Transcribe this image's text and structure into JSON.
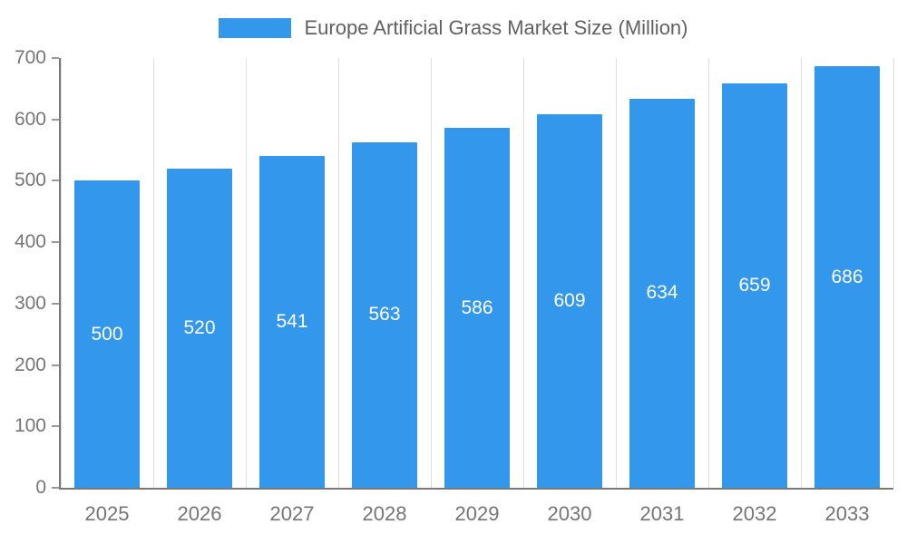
{
  "chart_data": {
    "type": "bar",
    "title": "Europe Artificial Grass Market Size (Million)",
    "categories": [
      "2025",
      "2026",
      "2027",
      "2028",
      "2029",
      "2030",
      "2031",
      "2032",
      "2033"
    ],
    "values": [
      500,
      520,
      541,
      563,
      586,
      609,
      634,
      659,
      686
    ],
    "xlabel": "",
    "ylabel": "",
    "ylim": [
      0,
      700
    ],
    "ytick_step": 100,
    "grid": "vertical",
    "legend_position": "top",
    "colors": {
      "bar": "#3398EC",
      "value_label": "#FFFFFF",
      "axis_label": "#757575",
      "title_text": "#616161",
      "gridline": "#DEDEDE",
      "axis_line": "#787878"
    }
  }
}
